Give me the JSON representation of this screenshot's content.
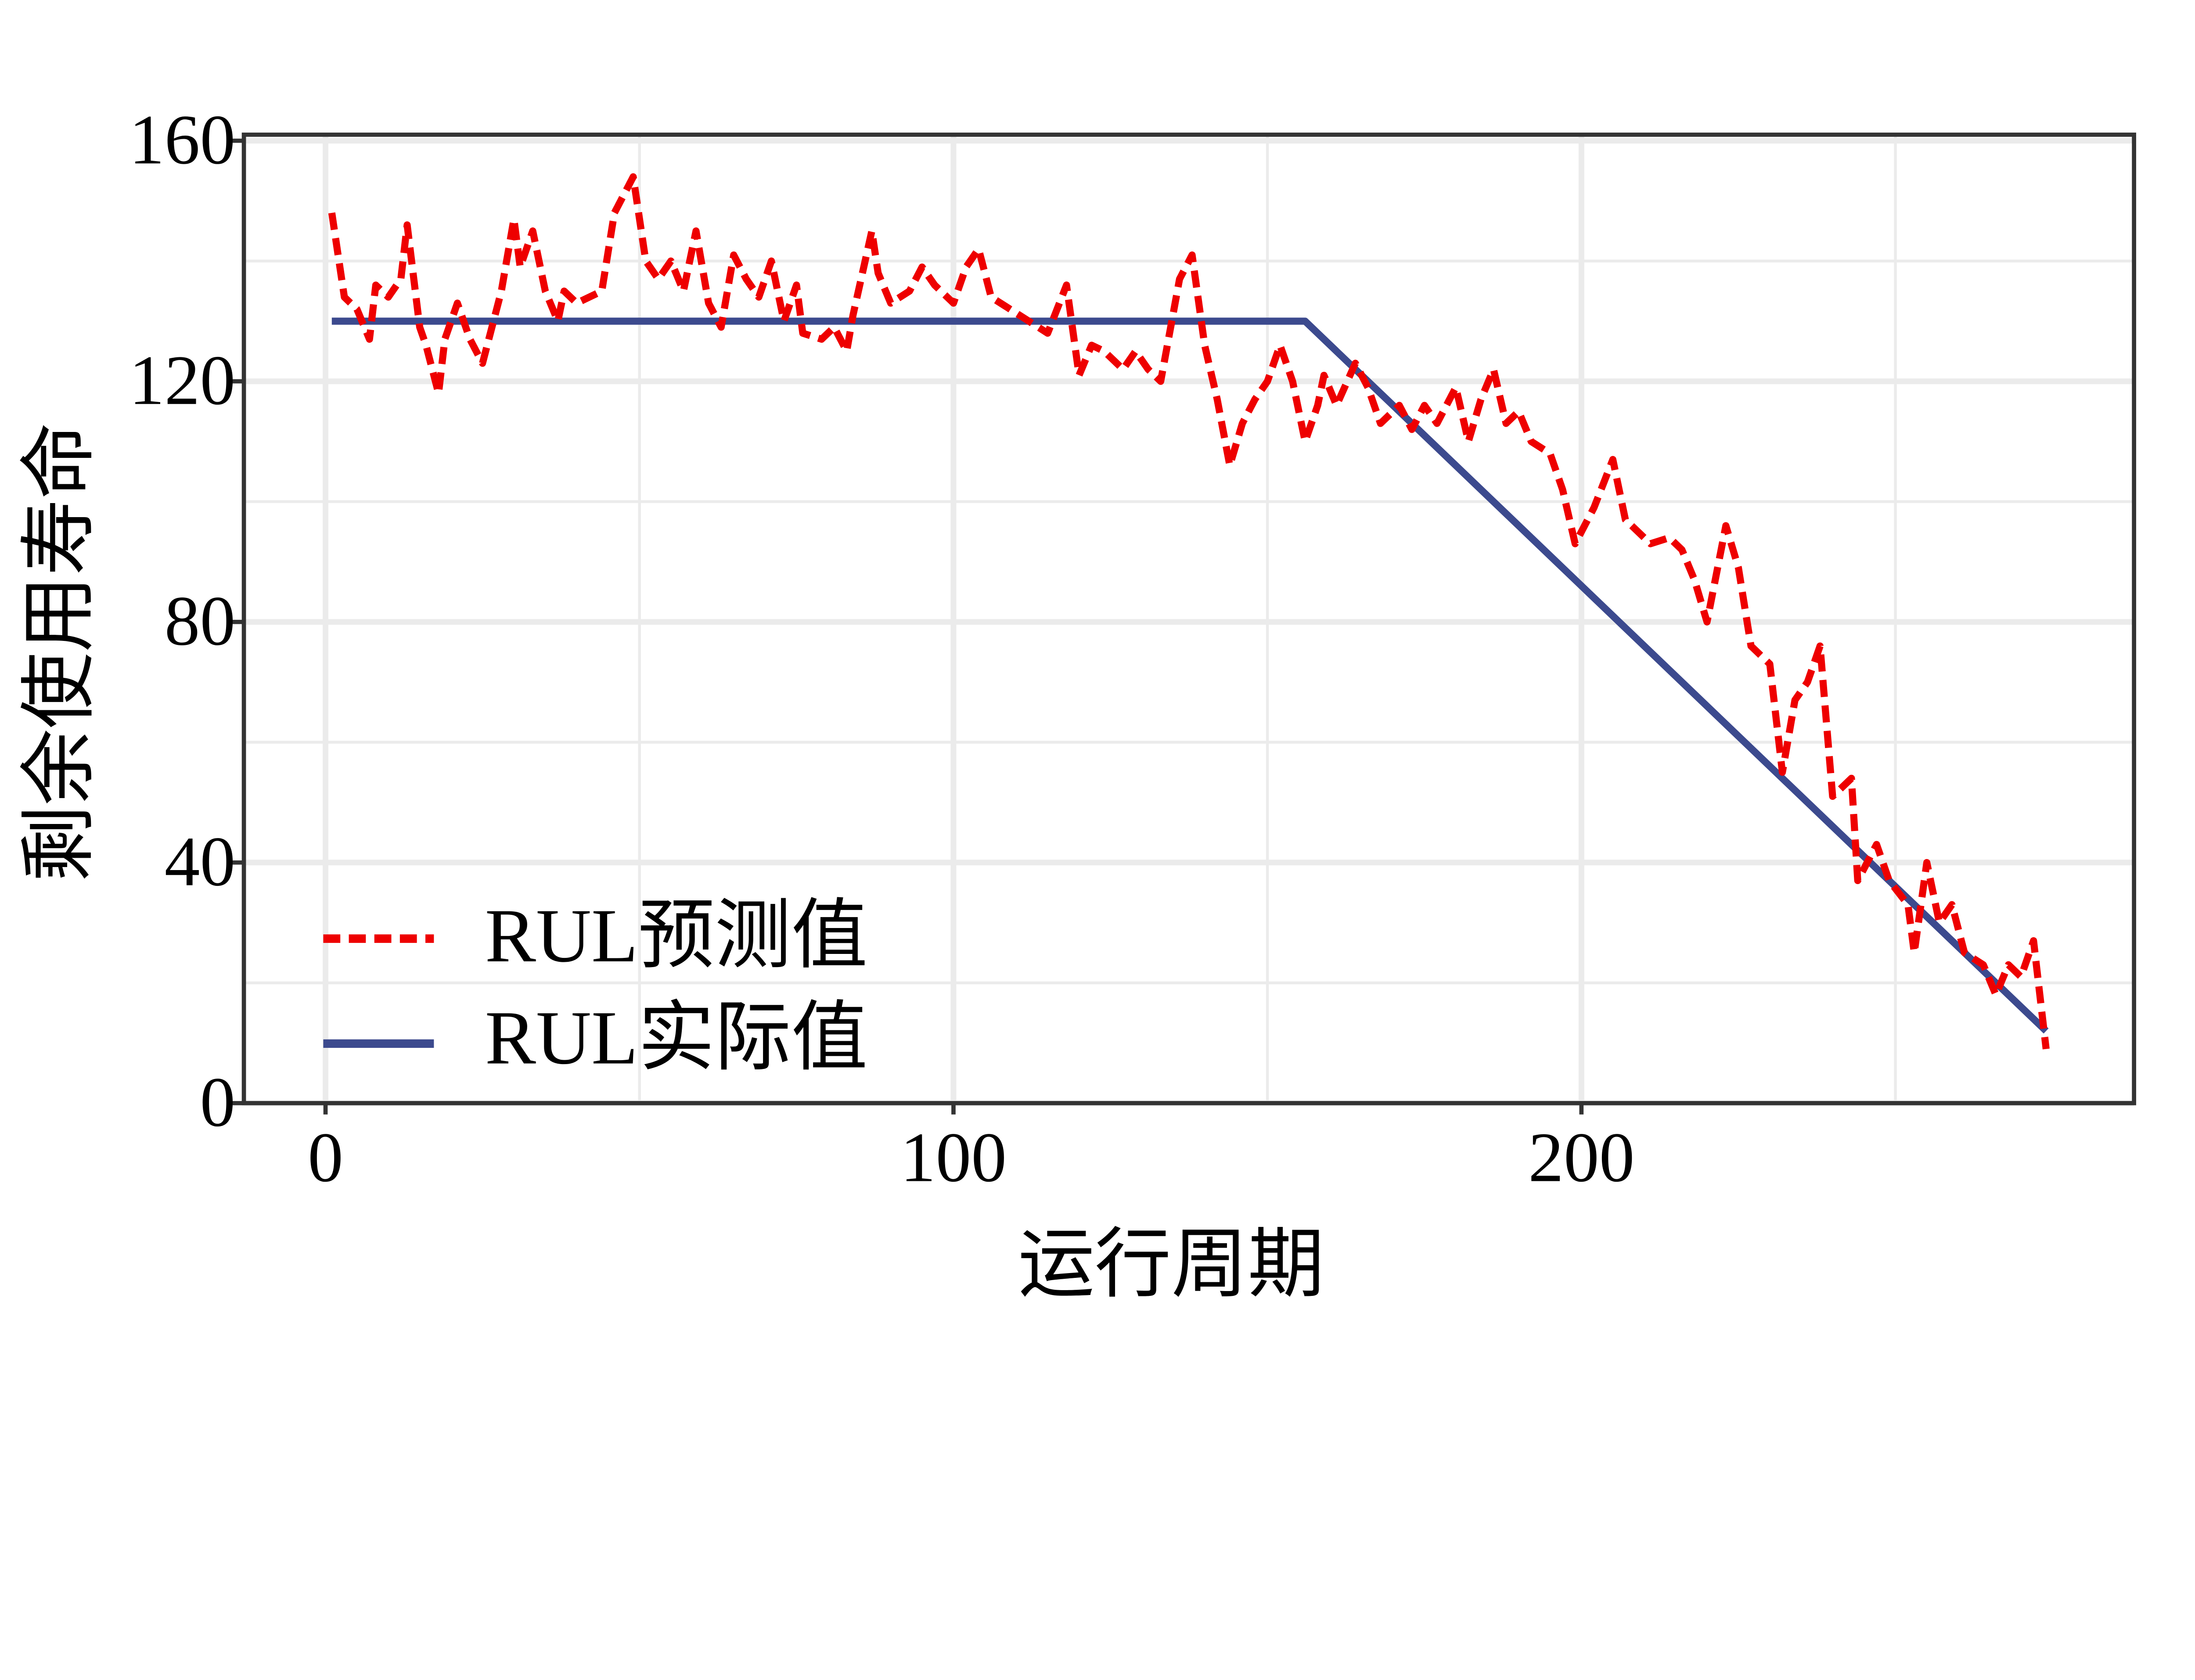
{
  "chart_data": {
    "type": "line",
    "title": "",
    "xlabel": "运行周期",
    "ylabel": "剩余使用寿命",
    "xlim": [
      -13,
      288
    ],
    "ylim": [
      0,
      161
    ],
    "x_ticks": [
      0,
      100,
      200
    ],
    "x_tick_labels": [
      "0",
      "100",
      "200"
    ],
    "y_ticks": [
      0,
      40,
      80,
      120,
      160
    ],
    "y_tick_labels": [
      "0",
      "40",
      "80",
      "120",
      "160"
    ],
    "x_minor_grid": [
      50,
      150,
      250
    ],
    "y_minor_grid": [
      20,
      60,
      100,
      140
    ],
    "grid": true,
    "legend_position": "bottom-left",
    "series": [
      {
        "name": "RUL预测值",
        "color": "#EE0000",
        "style": "dashed",
        "x": [
          1,
          3,
          5,
          7,
          8,
          10,
          12,
          13,
          15,
          16,
          18,
          19,
          21,
          23,
          25,
          26,
          28,
          30,
          31,
          33,
          35,
          37,
          38,
          40,
          42,
          44,
          46,
          49,
          51,
          53,
          55,
          57,
          59,
          61,
          63,
          65,
          67,
          69,
          71,
          73,
          75,
          76,
          79,
          81,
          83,
          84,
          87,
          88,
          90,
          93,
          95,
          97,
          100,
          102,
          104,
          106,
          109,
          112,
          115,
          118,
          120,
          122,
          124,
          127,
          129,
          131,
          133,
          136,
          138,
          140,
          142,
          144,
          146,
          148,
          150,
          152,
          154,
          156,
          158,
          159,
          161,
          164,
          166,
          168,
          171,
          173,
          175,
          177,
          180,
          182,
          184,
          186,
          188,
          190,
          192,
          195,
          197,
          199,
          202,
          205,
          207,
          209,
          211,
          214,
          216,
          218,
          220,
          223,
          225,
          227,
          230,
          232,
          234,
          236,
          238,
          240,
          243,
          244,
          247,
          249,
          252,
          253,
          255,
          257,
          259,
          261,
          264,
          266,
          268,
          270,
          272,
          274
        ],
        "y": [
          148,
          134,
          132,
          127,
          136,
          134,
          137,
          146,
          129,
          126,
          118,
          127,
          133,
          127,
          123,
          127,
          135,
          147,
          139,
          145,
          135,
          130,
          135,
          133,
          134,
          135,
          148,
          154,
          140,
          137,
          140,
          135,
          145,
          133,
          129,
          141,
          137,
          134,
          140,
          130,
          136,
          128,
          127,
          129,
          125,
          131,
          145,
          138,
          133,
          135,
          139,
          136,
          133,
          139,
          142,
          134,
          132,
          130,
          128,
          136,
          121,
          126,
          125,
          122,
          125,
          122,
          120,
          137,
          141,
          126,
          117,
          106,
          113,
          117,
          120,
          126,
          120,
          110,
          116,
          121,
          116,
          123,
          119,
          113,
          116,
          112,
          116,
          113,
          119,
          110,
          117,
          122,
          113,
          115,
          110,
          108,
          102,
          93,
          99,
          107,
          97,
          95,
          93,
          94,
          92,
          87,
          80,
          96,
          89,
          76,
          73,
          55,
          67,
          70,
          76,
          51,
          54,
          37,
          43,
          37,
          33,
          25,
          40,
          30,
          33,
          25,
          23,
          18,
          23,
          21,
          27,
          9
        ]
      },
      {
        "name": "RUL实际值",
        "color": "#3C4A8E",
        "style": "solid",
        "x": [
          1,
          156,
          274
        ],
        "y": [
          130,
          130,
          12
        ]
      }
    ]
  }
}
